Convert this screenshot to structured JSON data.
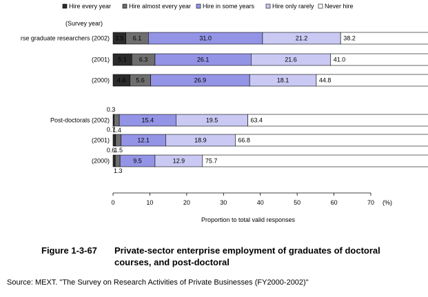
{
  "chart_data": {
    "type": "bar",
    "stacked": "horizontal",
    "survey_year_label": "(Survey year)",
    "legend_position": "top",
    "xlabel": "Proportion to total valid responses",
    "x_unit": "(%)",
    "xlim": [
      0,
      70
    ],
    "x_ticks": [
      "0",
      "10",
      "20",
      "30",
      "40",
      "50",
      "60",
      "70"
    ],
    "series": [
      {
        "name": "Hire every year",
        "color": "#2b2b2b"
      },
      {
        "name": "Hire almost every year",
        "color": "#6e6e6e"
      },
      {
        "name": "Hire in some years",
        "color": "#9494e6"
      },
      {
        "name": "Hire only rarely",
        "color": "#c9c9f3"
      },
      {
        "name": "Never hire",
        "color": "#ffffff"
      }
    ],
    "bars": [
      {
        "label": "rse graduate researchers (2002)",
        "values": [
          3.5,
          6.1,
          31.0,
          21.2,
          38.2
        ],
        "labels": [
          "3.5",
          "6.1",
          "31.0",
          "21.2",
          "38.2"
        ]
      },
      {
        "label": "(2001)",
        "values": [
          5.1,
          6.3,
          26.1,
          21.6,
          41.0
        ],
        "labels": [
          "5.1",
          "6.3",
          "26.1",
          "21.6",
          "41.0"
        ]
      },
      {
        "label": "(2000)",
        "values": [
          4.6,
          5.6,
          26.9,
          18.1,
          44.8
        ],
        "labels": [
          "4.6",
          "5.6",
          "26.9",
          "18.1",
          "44.8"
        ]
      },
      {
        "label": "Post-doctorals (2002)",
        "values": [
          0.3,
          1.4,
          15.4,
          19.5,
          63.4
        ],
        "labels": [
          "0.3",
          "1.4",
          "15.4",
          "19.5",
          "63.4"
        ]
      },
      {
        "label": "(2001)",
        "values": [
          0.7,
          1.5,
          12.1,
          18.9,
          66.8
        ],
        "labels": [
          "0.7",
          "1.5",
          "12.1",
          "18.9",
          "66.8"
        ]
      },
      {
        "label": "(2000)",
        "values": [
          0.6,
          1.3,
          9.5,
          12.9,
          75.7
        ],
        "labels": [
          "0.6",
          "1.3",
          "9.5",
          "12.9",
          "75.7"
        ]
      }
    ]
  },
  "caption": {
    "number": "Figure 1-3-67",
    "title_line1": "Private-sector enterprise employment of graduates of doctoral",
    "title_line2": "courses, and post-doctoral"
  },
  "source": "Source: MEXT. \"The Survey on Research Activities of Private Businesses (FY2000-2002)\""
}
